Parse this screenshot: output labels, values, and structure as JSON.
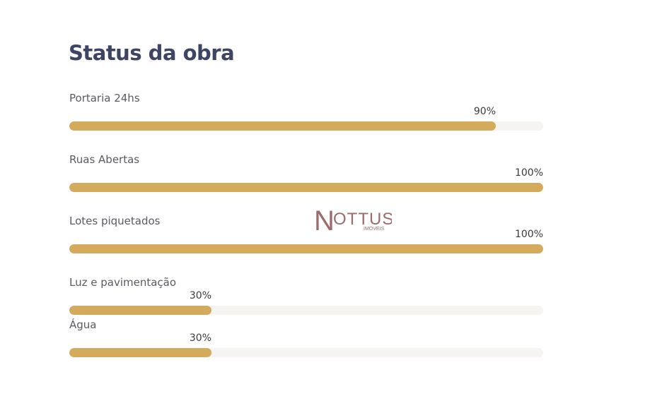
{
  "page": {
    "title": "Status da obra"
  },
  "progress_items": [
    {
      "label": "Portaria 24hs",
      "percent_text": "90%",
      "value": 90
    },
    {
      "label": "Ruas Abertas",
      "percent_text": "100%",
      "value": 100
    },
    {
      "label": "Lotes piquetados",
      "percent_text": "100%",
      "value": 100
    },
    {
      "label": "Luz e pavimentação",
      "percent_text": "30%",
      "value": 30
    },
    {
      "label": "Água",
      "percent_text": "30%",
      "value": 30
    }
  ],
  "watermark": {
    "brand": "NOTTUS",
    "sub": "IMOVEIS"
  },
  "colors": {
    "title": "#3e4463",
    "bar_fill": "#d4aa5c",
    "bar_track": "#f6f4f1",
    "watermark": "#9c6b6b"
  }
}
